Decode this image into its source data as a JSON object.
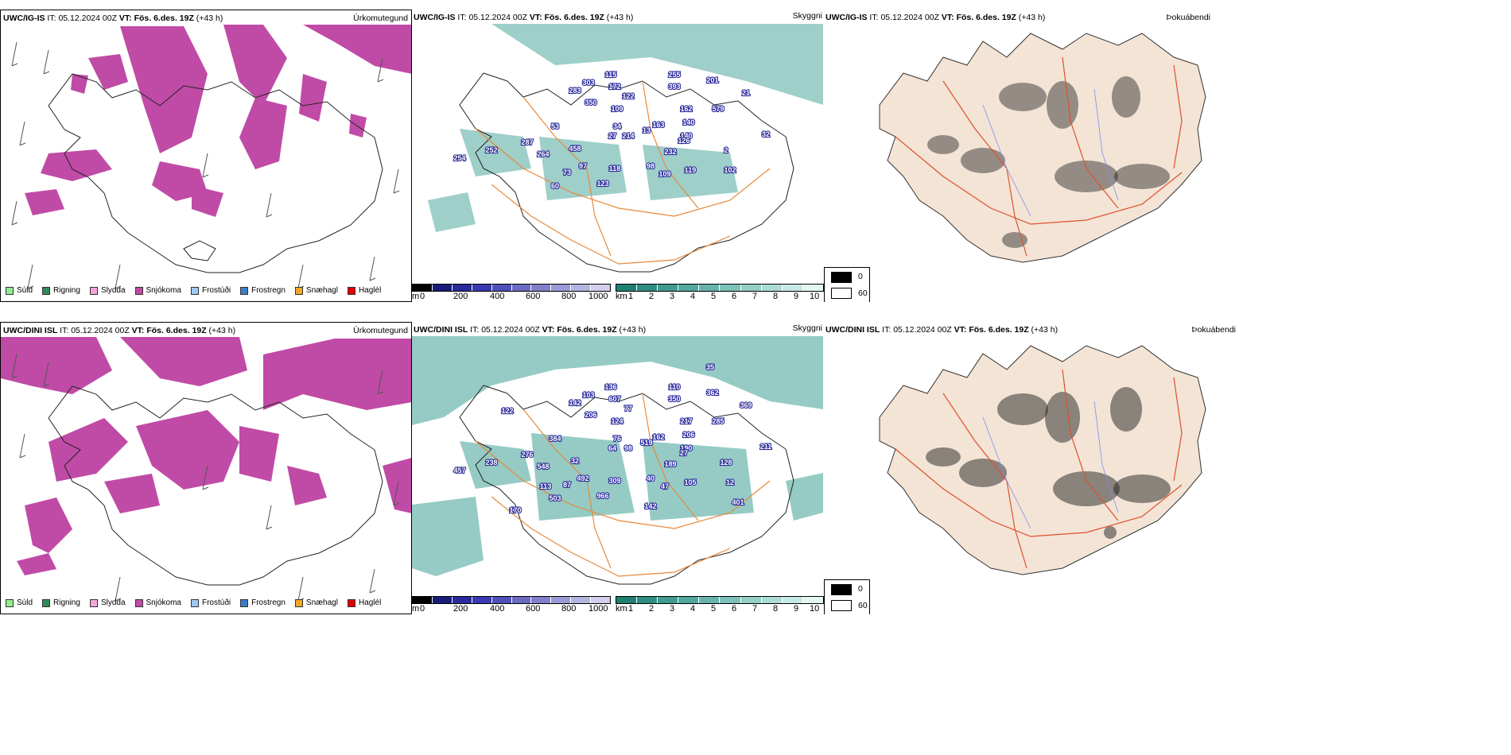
{
  "rows": [
    {
      "model": "UWC/IG-IS",
      "it_label": "IT:",
      "it_value": "05.12.2024 00Z",
      "vt_label": "VT:",
      "vt_value": "Fös. 6.des. 19Z",
      "lead": "(+43 h)",
      "precip_title": "Úrkomutegund",
      "vis_title": "Skyggni",
      "cloud_title": "Þokuábendi",
      "ceiling_labels": [
        "254",
        "252",
        "287",
        "264",
        "60",
        "73",
        "97",
        "118",
        "123",
        "458",
        "350",
        "53",
        "283",
        "303",
        "115",
        "172",
        "122",
        "109",
        "34",
        "27",
        "214",
        "163",
        "13",
        "140",
        "255",
        "393",
        "201",
        "21",
        "579",
        "162",
        "140",
        "126",
        "232",
        "98",
        "109",
        "119",
        "2",
        "102",
        "32"
      ],
      "vis_stronger": false
    },
    {
      "model": "UWC/DINI ISL",
      "it_label": "IT:",
      "it_value": "05.12.2024 00Z",
      "vt_label": "VT:",
      "vt_value": "Fös. 6.des. 19Z",
      "lead": "(+43 h)",
      "precip_title": "Úrkomutegund",
      "vis_title": "Skyggni",
      "cloud_title": "Þokuábendi",
      "ceiling_labels": [
        "457",
        "238",
        "276",
        "548",
        "503",
        "87",
        "492",
        "309",
        "966",
        "32",
        "206",
        "384",
        "142",
        "103",
        "136",
        "607",
        "77",
        "124",
        "76",
        "64",
        "98",
        "162",
        "519",
        "190",
        "110",
        "350",
        "362",
        "369",
        "285",
        "217",
        "206",
        "27",
        "189",
        "40",
        "47",
        "105",
        "128",
        "12",
        "211",
        "113",
        "170",
        "401",
        "122",
        "35",
        "142"
      ],
      "vis_stronger": true
    }
  ],
  "precip_legend": [
    {
      "label": "Súld",
      "color": "#90ee90"
    },
    {
      "label": "Rigning",
      "color": "#2e8b57"
    },
    {
      "label": "Slydda",
      "color": "#f4a6d7"
    },
    {
      "label": "Snjókoma",
      "color": "#c04ba6"
    },
    {
      "label": "Frostúði",
      "color": "#9ec9f2"
    },
    {
      "label": "Frostregn",
      "color": "#3a7dc9"
    },
    {
      "label": "Snæhagl",
      "color": "#f5a623"
    },
    {
      "label": "Haglél",
      "color": "#e00000"
    }
  ],
  "ceiling_bar": {
    "unit": "m",
    "ticks": [
      "0",
      "200",
      "400",
      "600",
      "800",
      "1000"
    ],
    "colors": [
      "#000000",
      "#1a1a7a",
      "#2a2a9a",
      "#3a3ab0",
      "#5050b8",
      "#6a6ac4",
      "#8080cc",
      "#9a9ad6",
      "#b4b4e0",
      "#d0d0ec"
    ]
  },
  "vis_bar": {
    "unit": "km",
    "ticks": [
      "1",
      "2",
      "3",
      "4",
      "5",
      "6",
      "7",
      "8",
      "9",
      "10"
    ],
    "colors": [
      "#1e7f74",
      "#2e8c82",
      "#3f9a90",
      "#52a89e",
      "#66b5ab",
      "#7cc2b9",
      "#93cfc7",
      "#acdcd5",
      "#c7e9e4",
      "#e4f5f2"
    ]
  },
  "cloud_legend": [
    {
      "label": "0",
      "color": "#000000"
    },
    {
      "label": "60",
      "color": "#ffffff"
    }
  ],
  "colors": {
    "snow": "#c04ba6",
    "vis": "#4fa89d",
    "roads": "#e8893a",
    "land": "#f3e4d6",
    "rivers": "#7b8ff0"
  }
}
